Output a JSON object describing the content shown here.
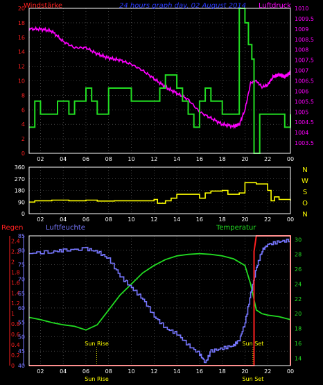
{
  "colors": {
    "background": "#000000",
    "axes": "#ffffff",
    "grid": "#6e6e6e",
    "wind": "#22dd22",
    "pressure": "#ff00ff",
    "direction": "#ffff00",
    "rain": "#ff2020",
    "humidity": "#7777ff",
    "temperature": "#22dd22",
    "title": "#2a3aff",
    "marker": "#ffff00"
  },
  "labels": {
    "wind": "Windstärke",
    "title": "24 hours graph day, 02 August 2014",
    "pressure": "Luftdruck",
    "rain": "Regen",
    "humidity": "Luftfeuchte",
    "temperature": "Temperatur",
    "compass": [
      "N",
      "W",
      "S",
      "O",
      "N"
    ],
    "sunrise": "Sun Rise",
    "sunset": "Sun Set"
  },
  "chart_data": [
    {
      "type": "line",
      "x_ticks": [
        "02",
        "04",
        "06",
        "08",
        "10",
        "12",
        "14",
        "16",
        "18",
        "20",
        "22",
        "00"
      ],
      "x_range": [
        1,
        24
      ],
      "y_left": {
        "label": "Windstärke",
        "range": [
          0,
          20
        ],
        "ticks": [
          0,
          2,
          4,
          6,
          8,
          10,
          12,
          14,
          16,
          18,
          20
        ]
      },
      "y_right": {
        "label": "Luftdruck",
        "range": [
          1003,
          1010
        ],
        "ticks": [
          "1003.5",
          "1004",
          "1004.5",
          "1005",
          "1005.5",
          "1006",
          "1006.5",
          "1007",
          "1007.5",
          "1008",
          "1008.5",
          "1009",
          "1009.5",
          "1010"
        ]
      },
      "grid": true,
      "series": [
        {
          "name": "Windstärke",
          "axis": "left",
          "step": true,
          "points": [
            [
              1.0,
              3.6
            ],
            [
              1.5,
              7.2
            ],
            [
              2.0,
              5.4
            ],
            [
              3.5,
              7.2
            ],
            [
              4.5,
              5.4
            ],
            [
              5.0,
              7.2
            ],
            [
              6.0,
              9.0
            ],
            [
              6.5,
              7.2
            ],
            [
              7.0,
              5.4
            ],
            [
              8.0,
              9.0
            ],
            [
              10.0,
              7.2
            ],
            [
              12.5,
              9.0
            ],
            [
              13.0,
              10.8
            ],
            [
              14.0,
              9.0
            ],
            [
              14.5,
              7.2
            ],
            [
              15.0,
              5.4
            ],
            [
              15.5,
              3.6
            ],
            [
              16.0,
              7.2
            ],
            [
              16.5,
              9.0
            ],
            [
              17.0,
              7.2
            ],
            [
              18.0,
              5.4
            ],
            [
              19.5,
              20.0
            ],
            [
              19.8,
              20.0
            ],
            [
              20.0,
              18.0
            ],
            [
              20.3,
              15.0
            ],
            [
              20.6,
              13.0
            ],
            [
              20.8,
              0.0
            ],
            [
              21.3,
              5.4
            ],
            [
              23.5,
              3.6
            ],
            [
              24.0,
              5.4
            ]
          ]
        },
        {
          "name": "Luftdruck",
          "axis": "right",
          "points": [
            [
              1.0,
              1009.0
            ],
            [
              2.0,
              1009.0
            ],
            [
              3.0,
              1008.9
            ],
            [
              4.0,
              1008.4
            ],
            [
              5.0,
              1008.1
            ],
            [
              6.0,
              1008.1
            ],
            [
              7.0,
              1007.8
            ],
            [
              8.0,
              1007.6
            ],
            [
              9.0,
              1007.5
            ],
            [
              10.0,
              1007.3
            ],
            [
              11.0,
              1007.0
            ],
            [
              12.0,
              1006.6
            ],
            [
              13.0,
              1006.2
            ],
            [
              14.0,
              1005.9
            ],
            [
              15.0,
              1005.6
            ],
            [
              16.0,
              1005.0
            ],
            [
              17.0,
              1004.7
            ],
            [
              18.0,
              1004.4
            ],
            [
              19.0,
              1004.3
            ],
            [
              19.5,
              1004.4
            ],
            [
              20.0,
              1005.1
            ],
            [
              20.5,
              1006.4
            ],
            [
              21.0,
              1006.5
            ],
            [
              21.5,
              1006.2
            ],
            [
              22.0,
              1006.3
            ],
            [
              22.5,
              1006.7
            ],
            [
              23.0,
              1006.8
            ],
            [
              23.5,
              1006.7
            ],
            [
              24.0,
              1006.9
            ]
          ]
        }
      ]
    },
    {
      "type": "line",
      "x_ticks": [
        "02",
        "04",
        "06",
        "08",
        "10",
        "12",
        "14",
        "16",
        "18",
        "20",
        "22",
        "00"
      ],
      "x_range": [
        1,
        24
      ],
      "y_left": {
        "range": [
          0,
          360
        ],
        "ticks": [
          0,
          90,
          180,
          270,
          360
        ]
      },
      "y_right_labels": [
        "N",
        "W",
        "S",
        "O",
        "N"
      ],
      "grid": true,
      "series": [
        {
          "axis": "left",
          "step": true,
          "points": [
            [
              1.0,
              90
            ],
            [
              1.5,
              100
            ],
            [
              3.0,
              105
            ],
            [
              4.5,
              100
            ],
            [
              6.0,
              105
            ],
            [
              7.0,
              98
            ],
            [
              8.5,
              100
            ],
            [
              10.5,
              100
            ],
            [
              12.0,
              110
            ],
            [
              12.3,
              80
            ],
            [
              13.0,
              100
            ],
            [
              13.5,
              120
            ],
            [
              14.0,
              150
            ],
            [
              15.0,
              150
            ],
            [
              16.0,
              120
            ],
            [
              16.5,
              160
            ],
            [
              17.0,
              175
            ],
            [
              18.0,
              180
            ],
            [
              18.5,
              150
            ],
            [
              19.5,
              160
            ],
            [
              20.0,
              240
            ],
            [
              21.0,
              230
            ],
            [
              22.0,
              180
            ],
            [
              22.3,
              100
            ],
            [
              22.6,
              130
            ],
            [
              23.0,
              110
            ],
            [
              24.0,
              100
            ]
          ]
        }
      ]
    },
    {
      "type": "line",
      "x_ticks": [
        "02",
        "04",
        "06",
        "08",
        "10",
        "12",
        "14",
        "16",
        "18",
        "20",
        "22",
        "00"
      ],
      "x_range": [
        1,
        24
      ],
      "y_rain": {
        "label": "Regen",
        "range": [
          0,
          2.5
        ],
        "ticks": [
          "0",
          "0.2",
          "0.4",
          "0.6",
          "0.8",
          "1",
          "1.2",
          "1.4",
          "1.6",
          "1.8",
          "2",
          "2.2",
          "2.4"
        ]
      },
      "y_humidity": {
        "label": "Luftfeuchte",
        "range": [
          40,
          85
        ],
        "ticks": [
          40,
          45,
          50,
          55,
          60,
          65,
          70,
          75,
          80,
          85
        ]
      },
      "y_right": {
        "label": "Temperatur",
        "range": [
          13,
          30.5
        ],
        "ticks": [
          14,
          16,
          18,
          20,
          22,
          24,
          26,
          28,
          30
        ]
      },
      "grid": true,
      "series": [
        {
          "name": "Regen",
          "axis": "rain",
          "step": true,
          "points": [
            [
              1.0,
              0.0
            ],
            [
              20.8,
              0.0
            ],
            [
              20.8,
              2.2
            ],
            [
              21.0,
              2.5
            ],
            [
              24.0,
              2.5
            ],
            [
              24.0,
              0.0
            ]
          ]
        },
        {
          "name": "Luftfeuchte",
          "axis": "humidity",
          "points": [
            [
              1.0,
              79.0
            ],
            [
              3.0,
              79.5
            ],
            [
              4.0,
              80.0
            ],
            [
              6.0,
              80.5
            ],
            [
              7.0,
              79.5
            ],
            [
              8.0,
              77.0
            ],
            [
              9.0,
              71.0
            ],
            [
              10.0,
              67.0
            ],
            [
              11.0,
              63.0
            ],
            [
              12.0,
              57.0
            ],
            [
              13.0,
              53.0
            ],
            [
              14.0,
              51.0
            ],
            [
              15.0,
              47.0
            ],
            [
              16.0,
              44.0
            ],
            [
              16.5,
              41.0
            ],
            [
              17.0,
              45.0
            ],
            [
              18.0,
              46.0
            ],
            [
              19.0,
              47.0
            ],
            [
              19.5,
              49.0
            ],
            [
              20.0,
              55.0
            ],
            [
              20.5,
              65.0
            ],
            [
              21.0,
              74.0
            ],
            [
              21.5,
              80.0
            ],
            [
              22.0,
              82.0
            ],
            [
              23.0,
              83.0
            ],
            [
              24.0,
              83.5
            ]
          ]
        },
        {
          "name": "Temperatur",
          "axis": "right",
          "points": [
            [
              1.0,
              19.5
            ],
            [
              2.0,
              19.2
            ],
            [
              3.0,
              18.8
            ],
            [
              4.0,
              18.5
            ],
            [
              5.0,
              18.3
            ],
            [
              6.0,
              17.8
            ],
            [
              7.0,
              18.5
            ],
            [
              8.0,
              20.5
            ],
            [
              9.0,
              22.5
            ],
            [
              10.0,
              24.0
            ],
            [
              11.0,
              25.5
            ],
            [
              12.0,
              26.5
            ],
            [
              13.0,
              27.3
            ],
            [
              14.0,
              27.8
            ],
            [
              15.0,
              28.0
            ],
            [
              16.0,
              28.1
            ],
            [
              17.0,
              28.0
            ],
            [
              18.0,
              27.8
            ],
            [
              19.0,
              27.4
            ],
            [
              20.0,
              26.5
            ],
            [
              20.5,
              24.0
            ],
            [
              21.0,
              20.5
            ],
            [
              21.5,
              20.0
            ],
            [
              22.0,
              19.8
            ],
            [
              23.0,
              19.6
            ],
            [
              24.0,
              19.2
            ]
          ]
        }
      ],
      "annotations": [
        {
          "label": "Sun Rise",
          "x": 6.95
        },
        {
          "label": "Sun Set",
          "x": 20.7
        }
      ]
    }
  ]
}
